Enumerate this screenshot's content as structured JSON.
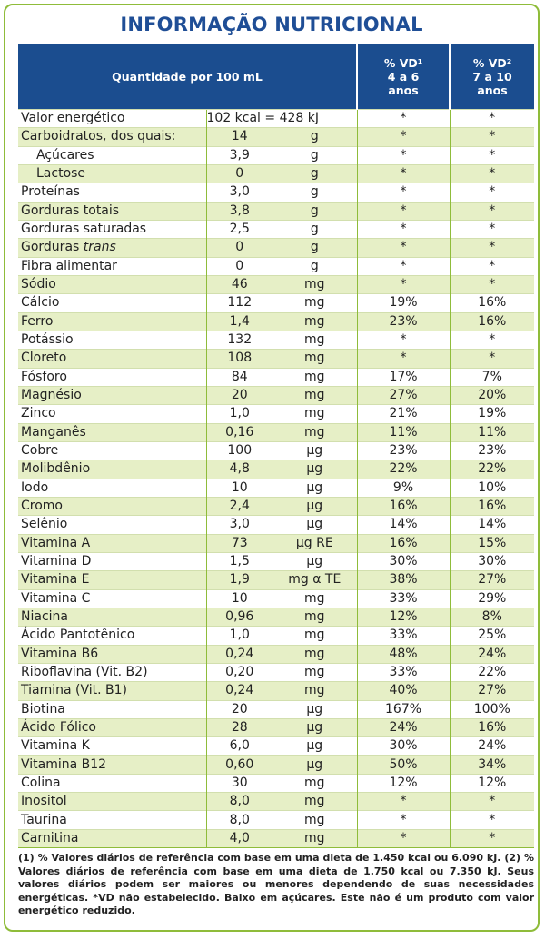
{
  "title": "INFORMAÇÃO NUTRICIONAL",
  "header": {
    "quantity_label": "Quantidade por 100 mL",
    "vd1": [
      "% VD¹",
      "4 a 6",
      "anos"
    ],
    "vd2": [
      "% VD²",
      "7 a 10",
      "anos"
    ]
  },
  "rows": [
    {
      "name": "Valor energético",
      "amount": "102 kcal = 428 kJ",
      "unit": "",
      "vd1": "*",
      "vd2": "*",
      "indent": false
    },
    {
      "name": "Carboidratos, dos quais:",
      "amount": "14",
      "unit": "g",
      "vd1": "*",
      "vd2": "*",
      "indent": false
    },
    {
      "name": "Açúcares",
      "amount": "3,9",
      "unit": "g",
      "vd1": "*",
      "vd2": "*",
      "indent": true
    },
    {
      "name": "Lactose",
      "amount": "0",
      "unit": "g",
      "vd1": "*",
      "vd2": "*",
      "indent": true
    },
    {
      "name": "Proteínas",
      "amount": "3,0",
      "unit": "g",
      "vd1": "*",
      "vd2": "*",
      "indent": false
    },
    {
      "name": "Gorduras totais",
      "amount": "3,8",
      "unit": "g",
      "vd1": "*",
      "vd2": "*",
      "indent": false
    },
    {
      "name": "Gorduras saturadas",
      "amount": "2,5",
      "unit": "g",
      "vd1": "*",
      "vd2": "*",
      "indent": false
    },
    {
      "name": "Gorduras trans",
      "amount": "0",
      "unit": "g",
      "vd1": "*",
      "vd2": "*",
      "indent": false
    },
    {
      "name": "Fibra alimentar",
      "amount": "0",
      "unit": "g",
      "vd1": "*",
      "vd2": "*",
      "indent": false
    },
    {
      "name": "Sódio",
      "amount": "46",
      "unit": "mg",
      "vd1": "*",
      "vd2": "*",
      "indent": false
    },
    {
      "name": "Cálcio",
      "amount": "112",
      "unit": "mg",
      "vd1": "19%",
      "vd2": "16%",
      "indent": false
    },
    {
      "name": "Ferro",
      "amount": "1,4",
      "unit": "mg",
      "vd1": "23%",
      "vd2": "16%",
      "indent": false
    },
    {
      "name": "Potássio",
      "amount": "132",
      "unit": "mg",
      "vd1": "*",
      "vd2": "*",
      "indent": false
    },
    {
      "name": "Cloreto",
      "amount": "108",
      "unit": "mg",
      "vd1": "*",
      "vd2": "*",
      "indent": false
    },
    {
      "name": "Fósforo",
      "amount": "84",
      "unit": "mg",
      "vd1": "17%",
      "vd2": "7%",
      "indent": false
    },
    {
      "name": "Magnésio",
      "amount": "20",
      "unit": "mg",
      "vd1": "27%",
      "vd2": "20%",
      "indent": false
    },
    {
      "name": "Zinco",
      "amount": "1,0",
      "unit": "mg",
      "vd1": "21%",
      "vd2": "19%",
      "indent": false
    },
    {
      "name": "Manganês",
      "amount": "0,16",
      "unit": "mg",
      "vd1": "11%",
      "vd2": "11%",
      "indent": false
    },
    {
      "name": "Cobre",
      "amount": "100",
      "unit": "µg",
      "vd1": "23%",
      "vd2": "23%",
      "indent": false
    },
    {
      "name": "Molibdênio",
      "amount": "4,8",
      "unit": "µg",
      "vd1": "22%",
      "vd2": "22%",
      "indent": false
    },
    {
      "name": "Iodo",
      "amount": "10",
      "unit": "µg",
      "vd1": "9%",
      "vd2": "10%",
      "indent": false
    },
    {
      "name": "Cromo",
      "amount": "2,4",
      "unit": "µg",
      "vd1": "16%",
      "vd2": "16%",
      "indent": false
    },
    {
      "name": "Selênio",
      "amount": "3,0",
      "unit": "µg",
      "vd1": "14%",
      "vd2": "14%",
      "indent": false
    },
    {
      "name": "Vitamina A",
      "amount": "73",
      "unit": "µg RE",
      "vd1": "16%",
      "vd2": "15%",
      "indent": false
    },
    {
      "name": "Vitamina D",
      "amount": "1,5",
      "unit": "µg",
      "vd1": "30%",
      "vd2": "30%",
      "indent": false
    },
    {
      "name": "Vitamina E",
      "amount": "1,9",
      "unit": "mg α TE",
      "vd1": "38%",
      "vd2": "27%",
      "indent": false
    },
    {
      "name": "Vitamina C",
      "amount": "10",
      "unit": "mg",
      "vd1": "33%",
      "vd2": "29%",
      "indent": false
    },
    {
      "name": "Niacina",
      "amount": "0,96",
      "unit": "mg",
      "vd1": "12%",
      "vd2": "8%",
      "indent": false
    },
    {
      "name": "Ácido Pantotênico",
      "amount": "1,0",
      "unit": "mg",
      "vd1": "33%",
      "vd2": "25%",
      "indent": false
    },
    {
      "name": "Vitamina B6",
      "amount": "0,24",
      "unit": "mg",
      "vd1": "48%",
      "vd2": "24%",
      "indent": false
    },
    {
      "name": "Riboflavina (Vit. B2)",
      "amount": "0,20",
      "unit": "mg",
      "vd1": "33%",
      "vd2": "22%",
      "indent": false
    },
    {
      "name": "Tiamina (Vit. B1)",
      "amount": "0,24",
      "unit": "mg",
      "vd1": "40%",
      "vd2": "27%",
      "indent": false
    },
    {
      "name": "Biotina",
      "amount": "20",
      "unit": "µg",
      "vd1": "167%",
      "vd2": "100%",
      "indent": false
    },
    {
      "name": "Ácido Fólico",
      "amount": "28",
      "unit": "µg",
      "vd1": "24%",
      "vd2": "16%",
      "indent": false
    },
    {
      "name": "Vitamina K",
      "amount": "6,0",
      "unit": "µg",
      "vd1": "30%",
      "vd2": "24%",
      "indent": false
    },
    {
      "name": "Vitamina B12",
      "amount": "0,60",
      "unit": "µg",
      "vd1": "50%",
      "vd2": "34%",
      "indent": false
    },
    {
      "name": "Colina",
      "amount": "30",
      "unit": "mg",
      "vd1": "12%",
      "vd2": "12%",
      "indent": false
    },
    {
      "name": "Inositol",
      "amount": "8,0",
      "unit": "mg",
      "vd1": "*",
      "vd2": "*",
      "indent": false
    },
    {
      "name": "Taurina",
      "amount": "8,0",
      "unit": "mg",
      "vd1": "*",
      "vd2": "*",
      "indent": false
    },
    {
      "name": "Carnitina",
      "amount": "4,0",
      "unit": "mg",
      "vd1": "*",
      "vd2": "*",
      "indent": false
    }
  ],
  "footnote": "(1) % Valores diários de referência com base em uma dieta de 1.450 kcal ou 6.090 kJ. (2) % Valores diários de referência com base em uma dieta de 1.750 kcal ou 7.350 kJ. Seus valores diários podem ser maiores ou menores dependendo de suas necessidades energéticas. *VD não estabelecido. Baixo em açúcares. Este não é um produto com valor energético reduzido.",
  "colors": {
    "title": "#1f4e96",
    "header_bg": "#1b4d8f",
    "border": "#8fbc3a",
    "stripe": "#e6efc6"
  }
}
